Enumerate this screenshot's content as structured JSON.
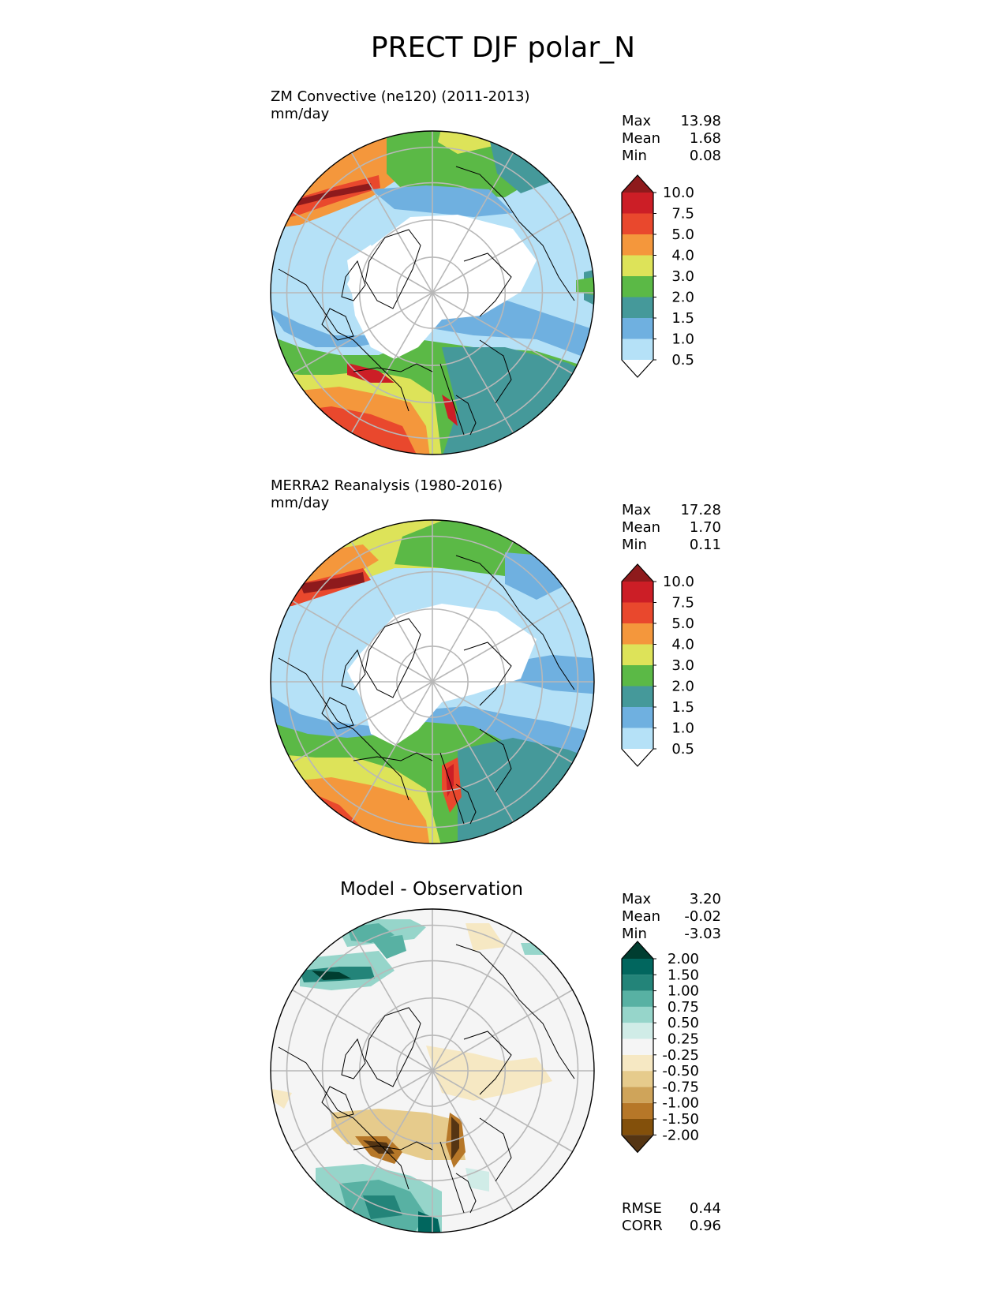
{
  "figure": {
    "title": "PRECT DJF polar_N"
  },
  "panels": [
    {
      "id": "test",
      "title": "ZM Convective (ne120) (2011-2013)",
      "units": "mm/day",
      "stats": [
        {
          "label": "Max",
          "value": "13.98"
        },
        {
          "label": "Mean",
          "value": "1.68"
        },
        {
          "label": "Min",
          "value": "0.08"
        }
      ]
    },
    {
      "id": "ref",
      "title": "MERRA2 Reanalysis (1980-2016)",
      "units": "mm/day",
      "stats": [
        {
          "label": "Max",
          "value": "17.28"
        },
        {
          "label": "Mean",
          "value": "1.70"
        },
        {
          "label": "Min",
          "value": "0.11"
        }
      ]
    },
    {
      "id": "diff",
      "title": "Model - Observation",
      "units": "",
      "stats": [
        {
          "label": "Max",
          "value": "3.20"
        },
        {
          "label": "Mean",
          "value": "-0.02"
        },
        {
          "label": "Min",
          "value": "-3.03"
        }
      ],
      "metrics": [
        {
          "label": "RMSE",
          "value": "0.44"
        },
        {
          "label": "CORR",
          "value": "0.96"
        }
      ]
    }
  ],
  "colorbars": {
    "precip": {
      "levels": [
        "0.5",
        "1.0",
        "1.5",
        "2.0",
        "3.0",
        "4.0",
        "5.0",
        "7.5",
        "10.0"
      ],
      "colors": [
        "#ffffff",
        "#b5e1f7",
        "#6fb0e0",
        "#45999a",
        "#5bb946",
        "#dde359",
        "#f4973c",
        "#e9482d",
        "#cc1e26",
        "#8e1a1c"
      ]
    },
    "diff": {
      "levels": [
        "-2.00",
        "-1.50",
        "-1.00",
        "-0.75",
        "-0.50",
        "-0.25",
        "0.25",
        "0.50",
        "0.75",
        "1.00",
        "1.50",
        "2.00"
      ],
      "colors": [
        "#553513",
        "#83500b",
        "#b67728",
        "#cfa45a",
        "#e6cb8c",
        "#f6e8c3",
        "#f5f5f5",
        "#d0ece7",
        "#96d5ca",
        "#58b1a3",
        "#238479",
        "#01665e",
        "#003d30"
      ]
    }
  },
  "colors": {
    "gridline": "#b8b8b8",
    "coastline": "#000000",
    "ice": "#ffffff",
    "ocean_low": "#b5e1f7",
    "diff_background": "#f5f5f5"
  }
}
